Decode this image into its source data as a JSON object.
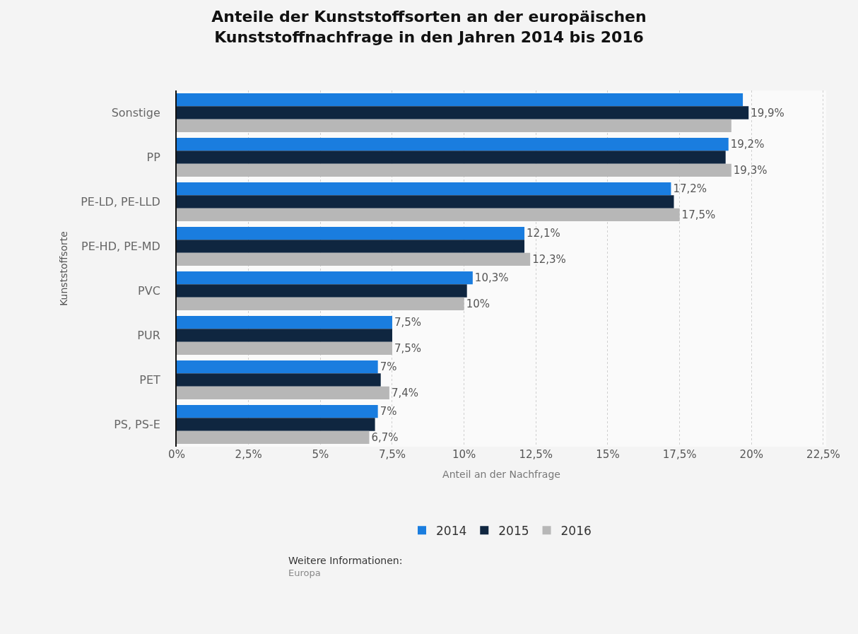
{
  "chart_data": {
    "type": "bar",
    "orientation": "horizontal",
    "title": "Anteile der Kunststoffsorten an der europäischen\nKunststoffnachfrage in den Jahren 2014 bis 2016",
    "xlabel": "Anteil an der Nachfrage",
    "ylabel": "Kunststoffsorte",
    "categories": [
      "Sonstige",
      "PP",
      "PE-LD, PE-LLD",
      "PE-HD, PE-MD",
      "PVC",
      "PUR",
      "PET",
      "PS, PS-E"
    ],
    "series": [
      {
        "name": "2014",
        "color": "#1a7ddf",
        "values": [
          19.7,
          19.2,
          17.2,
          12.1,
          10.3,
          7.5,
          7,
          7
        ],
        "value_labels": [
          null,
          "19,2%",
          "17,2%",
          "12,1%",
          "10,3%",
          "7,5%",
          "7%",
          "7%"
        ]
      },
      {
        "name": "2015",
        "color": "#0f2640",
        "values": [
          19.9,
          19.1,
          17.3,
          12.1,
          10.1,
          7.5,
          7.1,
          6.9
        ],
        "value_labels": [
          "19,9%",
          null,
          null,
          null,
          null,
          null,
          null,
          null
        ]
      },
      {
        "name": "2016",
        "color": "#b7b7b7",
        "values": [
          19.3,
          19.3,
          17.5,
          12.3,
          10,
          7.5,
          7.4,
          6.7
        ],
        "value_labels": [
          null,
          "19,3%",
          "17,5%",
          "12,3%",
          "10%",
          "7,5%",
          "7,4%",
          "6,7%"
        ]
      }
    ],
    "xlim": [
      0,
      22.6
    ],
    "xticks": [
      {
        "value": 0,
        "label": "0%"
      },
      {
        "value": 2.5,
        "label": "2,5%"
      },
      {
        "value": 5,
        "label": "5%"
      },
      {
        "value": 7.5,
        "label": "7,5%"
      },
      {
        "value": 10,
        "label": "10%"
      },
      {
        "value": 12.5,
        "label": "12,5%"
      },
      {
        "value": 15,
        "label": "15%"
      },
      {
        "value": 17.5,
        "label": "17,5%"
      },
      {
        "value": 20,
        "label": "20%"
      },
      {
        "value": 22.5,
        "label": "22,5%"
      }
    ],
    "grid": "x",
    "legend": "bottom",
    "annotations": [
      "Weitere Informationen:",
      "Europa"
    ]
  }
}
